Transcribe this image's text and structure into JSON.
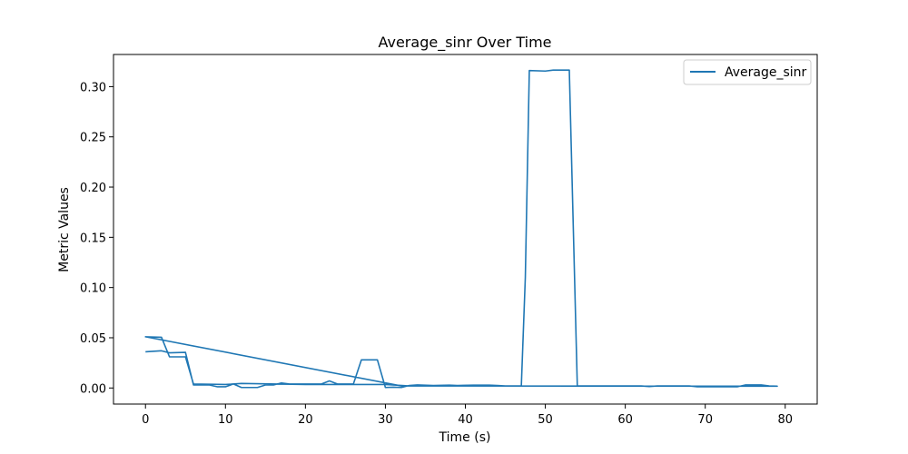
{
  "chart_data": {
    "type": "line",
    "title": "Average_sinr Over Time",
    "xlabel": "Time (s)",
    "ylabel": "Metric Values",
    "xlim": [
      -4,
      84
    ],
    "ylim": [
      -0.016,
      0.332
    ],
    "grid": false,
    "legend_position": "top-right",
    "x_ticks": [
      0,
      10,
      20,
      30,
      40,
      50,
      60,
      70,
      80
    ],
    "x_tick_labels": [
      "0",
      "10",
      "20",
      "30",
      "40",
      "50",
      "60",
      "70",
      "80"
    ],
    "y_ticks": [
      0.0,
      0.05,
      0.1,
      0.15,
      0.2,
      0.25,
      0.3
    ],
    "y_tick_labels": [
      "0.00",
      "0.05",
      "0.10",
      "0.15",
      "0.20",
      "0.25",
      "0.30"
    ],
    "series": [
      {
        "name": "Average_sinr",
        "color": "#1f77b4",
        "points": [
          [
            0,
            0.036
          ],
          [
            2,
            0.037
          ],
          [
            3,
            0.035
          ],
          [
            5,
            0.0355
          ],
          [
            6,
            0.003
          ],
          [
            8,
            0.003
          ],
          [
            9,
            0.0012
          ],
          [
            10,
            0.0012
          ],
          [
            11,
            0.004
          ],
          [
            12,
            0.0005
          ],
          [
            14,
            0.0005
          ],
          [
            15,
            0.003
          ],
          [
            16,
            0.003
          ],
          [
            17,
            0.005
          ],
          [
            18,
            0.004
          ],
          [
            22,
            0.004
          ],
          [
            23,
            0.007
          ],
          [
            24,
            0.004
          ],
          [
            26,
            0.004
          ],
          [
            27,
            0.028
          ],
          [
            29,
            0.028
          ],
          [
            30,
            0.0005
          ],
          [
            31,
            0.0008
          ],
          [
            32,
            0.0005
          ],
          [
            33,
            0.0025
          ],
          [
            34,
            0.003
          ],
          [
            36,
            0.0025
          ],
          [
            38,
            0.0028
          ],
          [
            39,
            0.0025
          ],
          [
            41,
            0.0028
          ],
          [
            43,
            0.0028
          ],
          [
            44,
            0.0025
          ],
          [
            45,
            0.002
          ],
          [
            46,
            0.002
          ],
          [
            47,
            0.002
          ],
          [
            47.5,
            0.11
          ],
          [
            48,
            0.316
          ],
          [
            50,
            0.3155
          ],
          [
            51,
            0.3165
          ],
          [
            53,
            0.3165
          ],
          [
            54,
            0.002
          ],
          [
            57,
            0.002
          ],
          [
            60,
            0.002
          ],
          [
            62,
            0.002
          ],
          [
            63,
            0.0015
          ],
          [
            64,
            0.002
          ],
          [
            66,
            0.002
          ],
          [
            68,
            0.002
          ],
          [
            69,
            0.0012
          ],
          [
            70,
            0.0012
          ],
          [
            72,
            0.0012
          ],
          [
            74,
            0.0012
          ],
          [
            75,
            0.003
          ],
          [
            77,
            0.003
          ],
          [
            78,
            0.002
          ],
          [
            79,
            0.0018
          ],
          [
            79,
            0.0018
          ],
          [
            32,
            0.002
          ],
          [
            0,
            0.051
          ],
          [
            2,
            0.0505
          ],
          [
            3,
            0.031
          ],
          [
            5,
            0.031
          ],
          [
            6,
            0.004
          ],
          [
            10,
            0.0035
          ],
          [
            12,
            0.0045
          ],
          [
            20,
            0.0035
          ],
          [
            26,
            0.0035
          ],
          [
            30,
            0.0035
          ],
          [
            33,
            0.002
          ]
        ]
      }
    ]
  }
}
